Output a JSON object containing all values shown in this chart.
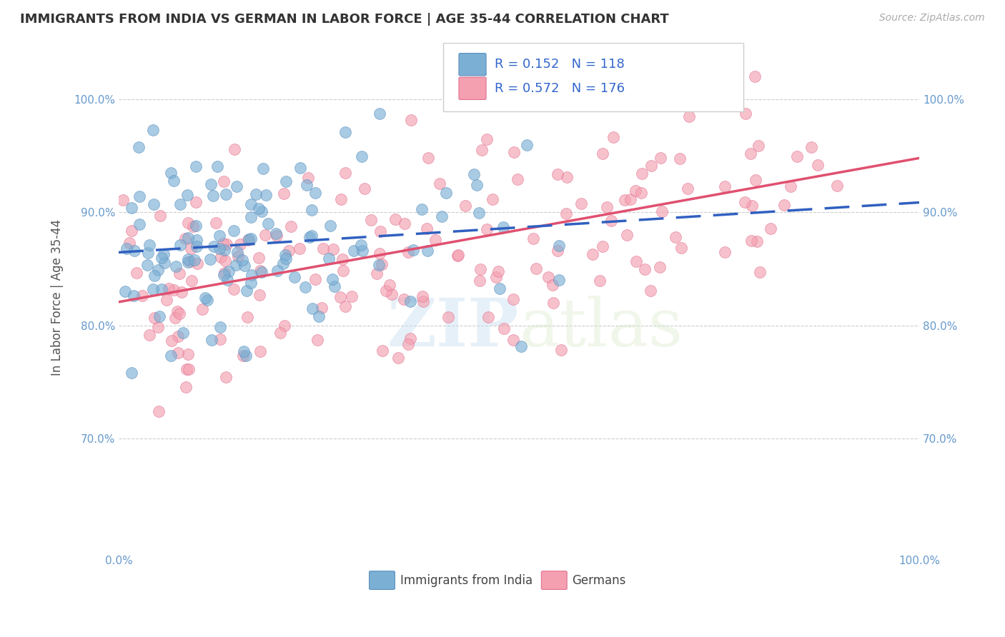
{
  "title": "IMMIGRANTS FROM INDIA VS GERMAN IN LABOR FORCE | AGE 35-44 CORRELATION CHART",
  "source": "Source: ZipAtlas.com",
  "xlabel": "",
  "ylabel": "In Labor Force | Age 35-44",
  "xlim": [
    0.0,
    1.0
  ],
  "ylim": [
    0.6,
    1.05
  ],
  "yticks": [
    0.7,
    0.8,
    0.9,
    1.0
  ],
  "ytick_labels": [
    "70.0%",
    "80.0%",
    "90.0%",
    "100.0%"
  ],
  "xticks": [
    0.0,
    0.2,
    0.4,
    0.6,
    0.8,
    1.0
  ],
  "xtick_labels": [
    "0.0%",
    "",
    "",
    "",
    "",
    "100.0%"
  ],
  "india_color": "#7bafd4",
  "india_edge_color": "#5a8fbf",
  "german_color": "#f4a0b0",
  "german_edge_color": "#e07090",
  "india_line_color": "#3060c0",
  "german_line_color": "#e05070",
  "india_R": 0.152,
  "india_N": 118,
  "german_R": 0.572,
  "german_N": 176,
  "watermark_zip": "ZIP",
  "watermark_atlas": "atlas",
  "background_color": "#ffffff",
  "grid_color": "#cccccc",
  "title_color": "#333333",
  "axis_label_color": "#555555",
  "tick_label_color": "#6699cc",
  "legend_text_color": "#3366cc",
  "seed": 42
}
